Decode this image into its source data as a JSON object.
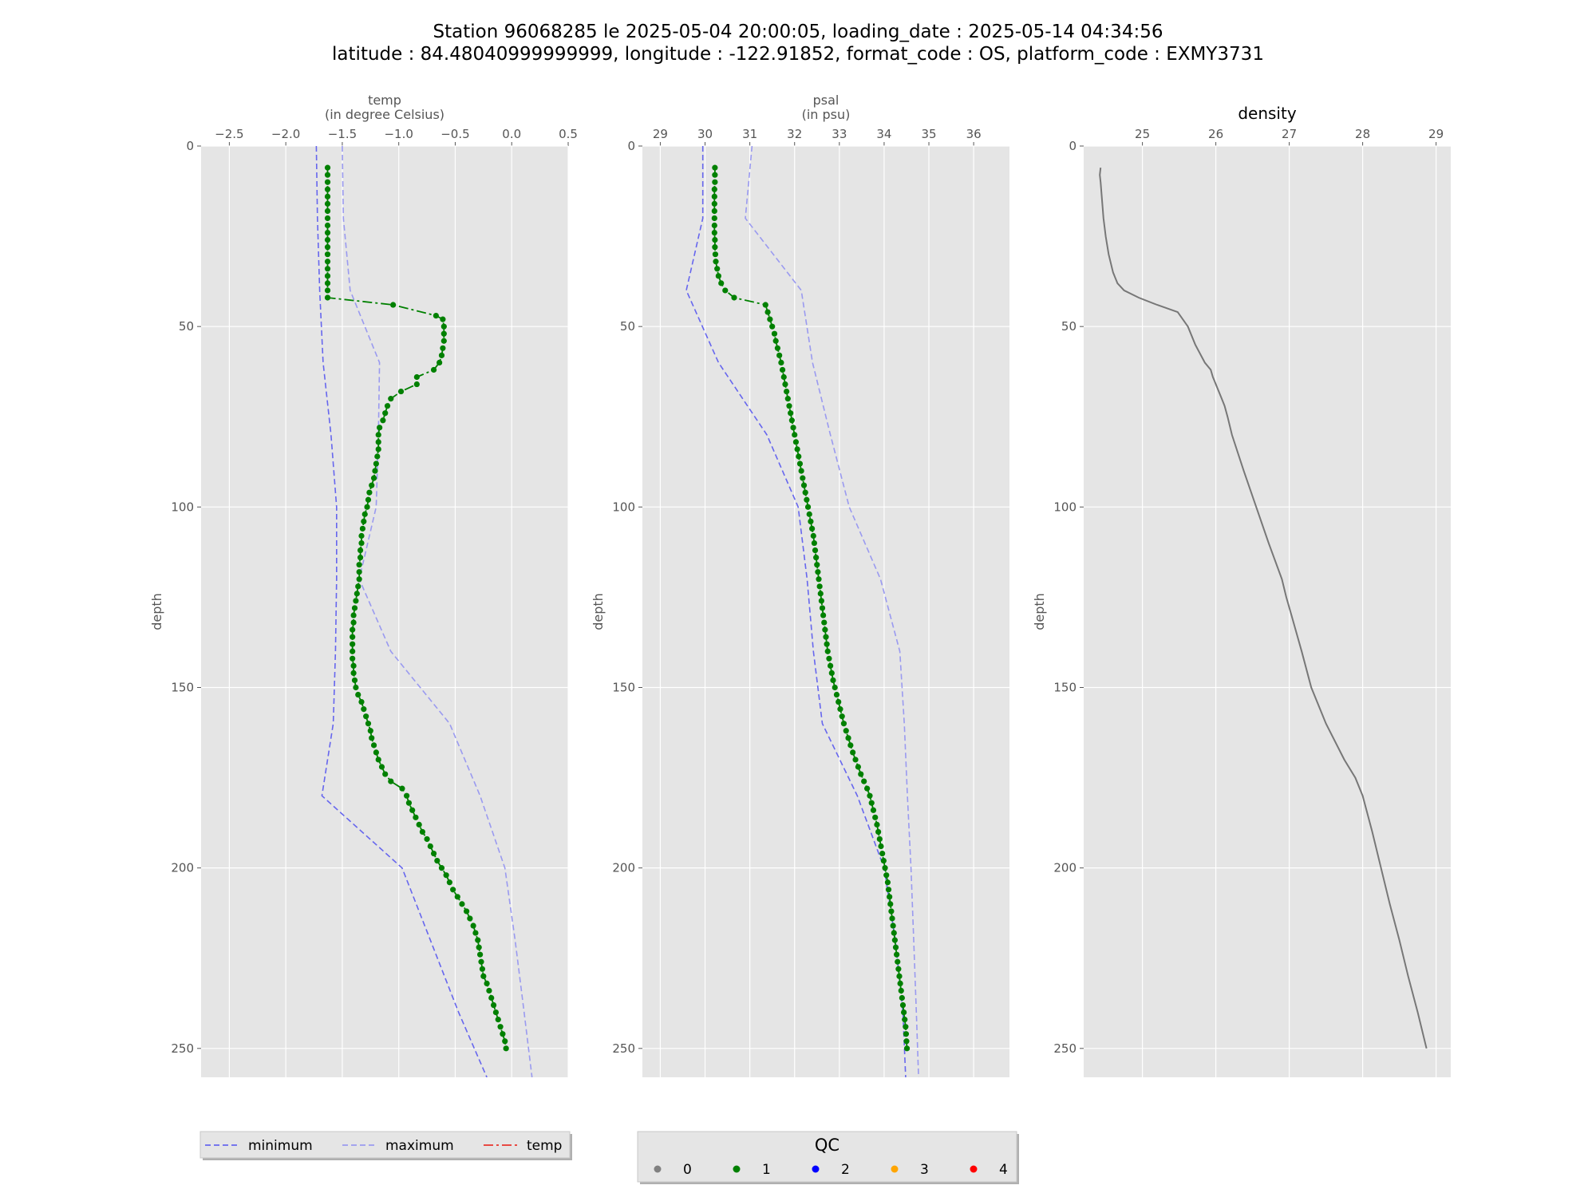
{
  "figure": {
    "title_line1": "Station 96068285 le 2025-05-04 20:00:05, loading_date : 2025-05-14 04:34:56",
    "title_line2": "latitude : 84.48040999999999, longitude : -122.91852, format_code : OS, platform_code : EXMY3731"
  },
  "colors": {
    "plot_bg": "#e5e5e5",
    "grid": "#ffffff",
    "min_line": "#6666ee",
    "max_line": "#9a9af0",
    "profile": "#008000",
    "density_line": "#777777",
    "legend_temp": "#e8352c",
    "qc0": "#808080",
    "qc1": "#008000",
    "qc2": "#0000ff",
    "qc3": "#ffa500",
    "qc4": "#ff0000"
  },
  "chart_data": [
    {
      "type": "line",
      "name": "temp",
      "xlabel_line1": "temp",
      "xlabel_line2": "(in degree Celsius)",
      "ylabel": "depth",
      "xlim": [
        -2.75,
        0.5
      ],
      "ylim": [
        258,
        0
      ],
      "xticks": [
        -2.5,
        -2.0,
        -1.5,
        -1.0,
        -0.5,
        0.0,
        0.5
      ],
      "xtick_labels": [
        "−2.5",
        "−2.0",
        "−1.5",
        "−1.0",
        "−0.5",
        "0.0",
        "0.5"
      ],
      "yticks": [
        0,
        50,
        100,
        150,
        200,
        250
      ],
      "ytick_labels": [
        "0",
        "50",
        "100",
        "150",
        "200",
        "250"
      ],
      "minimum": {
        "depth": [
          0,
          20,
          40,
          60,
          80,
          100,
          120,
          140,
          160,
          180,
          200,
          220,
          240,
          258
        ],
        "x": [
          -1.73,
          -1.72,
          -1.7,
          -1.67,
          -1.6,
          -1.55,
          -1.55,
          -1.56,
          -1.58,
          -1.68,
          -0.97,
          -0.72,
          -0.47,
          -0.22
        ]
      },
      "maximum": {
        "depth": [
          0,
          20,
          40,
          60,
          80,
          100,
          120,
          140,
          160,
          180,
          200,
          220,
          240,
          258
        ],
        "x": [
          -1.5,
          -1.49,
          -1.43,
          -1.17,
          -1.18,
          -1.2,
          -1.35,
          -1.07,
          -0.55,
          -0.28,
          -0.06,
          0.03,
          0.11,
          0.18
        ]
      },
      "profile": {
        "qc": 1,
        "depth": [
          6,
          8,
          10,
          12,
          14,
          16,
          18,
          20,
          22,
          24,
          26,
          28,
          30,
          32,
          34,
          36,
          38,
          40,
          42,
          44,
          47,
          48,
          50,
          52,
          54,
          56,
          58,
          60,
          62,
          64,
          66,
          68,
          70,
          72,
          74,
          76,
          78,
          80,
          82,
          84,
          86,
          88,
          90,
          92,
          94,
          96,
          98,
          100,
          102,
          104,
          106,
          108,
          110,
          112,
          114,
          116,
          118,
          120,
          122,
          124,
          126,
          128,
          130,
          132,
          134,
          136,
          138,
          140,
          142,
          144,
          146,
          148,
          150,
          152,
          154,
          156,
          158,
          160,
          162,
          164,
          166,
          168,
          170,
          172,
          174,
          176,
          178,
          180,
          182,
          184,
          186,
          188,
          190,
          192,
          194,
          196,
          198,
          200,
          202,
          204,
          206,
          208,
          210,
          212,
          214,
          216,
          218,
          220,
          222,
          224,
          226,
          228,
          230,
          232,
          234,
          236,
          238,
          240,
          242,
          244,
          246,
          248,
          250
        ],
        "x": [
          -1.63,
          -1.63,
          -1.63,
          -1.63,
          -1.63,
          -1.63,
          -1.63,
          -1.63,
          -1.63,
          -1.63,
          -1.63,
          -1.63,
          -1.63,
          -1.63,
          -1.63,
          -1.63,
          -1.63,
          -1.63,
          -1.63,
          -1.05,
          -0.67,
          -0.61,
          -0.6,
          -0.6,
          -0.6,
          -0.61,
          -0.62,
          -0.64,
          -0.69,
          -0.84,
          -0.84,
          -0.98,
          -1.07,
          -1.1,
          -1.12,
          -1.14,
          -1.17,
          -1.18,
          -1.18,
          -1.18,
          -1.19,
          -1.2,
          -1.21,
          -1.22,
          -1.24,
          -1.26,
          -1.27,
          -1.28,
          -1.3,
          -1.31,
          -1.32,
          -1.33,
          -1.33,
          -1.34,
          -1.34,
          -1.35,
          -1.35,
          -1.35,
          -1.36,
          -1.37,
          -1.38,
          -1.39,
          -1.4,
          -1.4,
          -1.41,
          -1.41,
          -1.41,
          -1.41,
          -1.41,
          -1.4,
          -1.4,
          -1.39,
          -1.38,
          -1.36,
          -1.33,
          -1.31,
          -1.29,
          -1.27,
          -1.25,
          -1.24,
          -1.22,
          -1.2,
          -1.18,
          -1.15,
          -1.12,
          -1.07,
          -0.97,
          -0.93,
          -0.91,
          -0.88,
          -0.85,
          -0.82,
          -0.79,
          -0.75,
          -0.72,
          -0.69,
          -0.66,
          -0.62,
          -0.58,
          -0.55,
          -0.52,
          -0.48,
          -0.44,
          -0.4,
          -0.37,
          -0.34,
          -0.32,
          -0.3,
          -0.29,
          -0.28,
          -0.27,
          -0.26,
          -0.25,
          -0.22,
          -0.2,
          -0.18,
          -0.16,
          -0.14,
          -0.12,
          -0.1,
          -0.08,
          -0.06,
          -0.05
        ]
      }
    },
    {
      "type": "line",
      "name": "psal",
      "xlabel_line1": "psal",
      "xlabel_line2": "(in psu)",
      "ylabel": "depth",
      "xlim": [
        28.6,
        36.8
      ],
      "ylim": [
        258,
        0
      ],
      "xticks": [
        29,
        30,
        31,
        32,
        33,
        34,
        35,
        36
      ],
      "xtick_labels": [
        "29",
        "30",
        "31",
        "32",
        "33",
        "34",
        "35",
        "36"
      ],
      "yticks": [
        0,
        50,
        100,
        150,
        200,
        250
      ],
      "ytick_labels": [
        "0",
        "50",
        "100",
        "150",
        "200",
        "250"
      ],
      "minimum": {
        "depth": [
          0,
          20,
          40,
          60,
          80,
          100,
          120,
          140,
          160,
          180,
          200,
          220,
          240,
          258
        ],
        "x": [
          29.95,
          29.95,
          29.58,
          30.3,
          31.38,
          32.08,
          32.28,
          32.42,
          32.62,
          33.4,
          34.0,
          34.25,
          34.42,
          34.48
        ]
      },
      "maximum": {
        "depth": [
          0,
          20,
          40,
          60,
          80,
          100,
          120,
          140,
          160,
          180,
          200,
          220,
          240,
          258
        ],
        "x": [
          31.05,
          30.9,
          32.15,
          32.4,
          32.8,
          33.22,
          33.92,
          34.35,
          34.45,
          34.52,
          34.6,
          34.66,
          34.72,
          34.77
        ]
      },
      "profile": {
        "qc": 1,
        "depth": [
          6,
          8,
          10,
          12,
          14,
          16,
          18,
          20,
          22,
          24,
          26,
          28,
          30,
          32,
          34,
          36,
          38,
          40,
          42,
          44,
          46,
          48,
          50,
          52,
          54,
          56,
          58,
          60,
          62,
          64,
          66,
          68,
          70,
          72,
          74,
          76,
          78,
          80,
          82,
          84,
          86,
          88,
          90,
          92,
          94,
          96,
          98,
          100,
          102,
          104,
          106,
          108,
          110,
          112,
          114,
          116,
          118,
          120,
          122,
          124,
          126,
          128,
          130,
          132,
          134,
          136,
          138,
          140,
          142,
          144,
          146,
          148,
          150,
          152,
          154,
          156,
          158,
          160,
          162,
          164,
          166,
          168,
          170,
          172,
          174,
          176,
          178,
          180,
          182,
          184,
          186,
          188,
          190,
          192,
          194,
          196,
          198,
          200,
          202,
          204,
          206,
          208,
          210,
          212,
          214,
          216,
          218,
          220,
          222,
          224,
          226,
          228,
          230,
          232,
          234,
          236,
          238,
          240,
          242,
          244,
          246,
          248,
          250
        ],
        "x": [
          30.22,
          30.22,
          30.22,
          30.21,
          30.21,
          30.21,
          30.21,
          30.21,
          30.21,
          30.21,
          30.22,
          30.22,
          30.23,
          30.24,
          30.27,
          30.3,
          30.36,
          30.45,
          30.65,
          31.35,
          31.4,
          31.45,
          31.5,
          31.55,
          31.58,
          31.62,
          31.66,
          31.7,
          31.73,
          31.76,
          31.79,
          31.82,
          31.85,
          31.88,
          31.91,
          31.94,
          31.97,
          32.0,
          32.03,
          32.06,
          32.09,
          32.12,
          32.15,
          32.18,
          32.21,
          32.24,
          32.27,
          32.3,
          32.33,
          32.36,
          32.39,
          32.42,
          32.44,
          32.46,
          32.48,
          32.5,
          32.52,
          32.54,
          32.56,
          32.58,
          32.6,
          32.62,
          32.64,
          32.66,
          32.68,
          32.7,
          32.72,
          32.74,
          32.77,
          32.8,
          32.83,
          32.86,
          32.9,
          32.94,
          32.98,
          33.02,
          33.06,
          33.1,
          33.15,
          33.2,
          33.25,
          33.3,
          33.36,
          33.42,
          33.48,
          33.55,
          33.62,
          33.68,
          33.72,
          33.76,
          33.8,
          33.84,
          33.87,
          33.9,
          33.93,
          33.96,
          33.99,
          34.02,
          34.05,
          34.08,
          34.1,
          34.12,
          34.14,
          34.16,
          34.18,
          34.2,
          34.22,
          34.24,
          34.26,
          34.28,
          34.3,
          34.32,
          34.34,
          34.36,
          34.38,
          34.4,
          34.42,
          34.44,
          34.46,
          34.48,
          34.49,
          34.5,
          34.51
        ]
      }
    },
    {
      "type": "line",
      "name": "density",
      "title": "density",
      "ylabel": "depth",
      "xlim": [
        24.2,
        29.2
      ],
      "ylim": [
        258,
        0
      ],
      "xticks": [
        25,
        26,
        27,
        28,
        29
      ],
      "xtick_labels": [
        "25",
        "26",
        "27",
        "28",
        "29"
      ],
      "yticks": [
        0,
        50,
        100,
        150,
        200,
        250
      ],
      "ytick_labels": [
        "0",
        "50",
        "100",
        "150",
        "200",
        "250"
      ],
      "line": {
        "depth": [
          6,
          8,
          10,
          15,
          20,
          25,
          30,
          35,
          38,
          40,
          42,
          44,
          46,
          50,
          55,
          60,
          62,
          64,
          66,
          70,
          72,
          75,
          80,
          85,
          90,
          100,
          110,
          120,
          125,
          130,
          140,
          150,
          160,
          170,
          175,
          180,
          190,
          200,
          210,
          220,
          230,
          240,
          250
        ],
        "x": [
          24.43,
          24.42,
          24.43,
          24.45,
          24.47,
          24.5,
          24.54,
          24.6,
          24.66,
          24.75,
          24.95,
          25.2,
          25.48,
          25.62,
          25.72,
          25.85,
          25.93,
          25.96,
          26.0,
          26.08,
          26.12,
          26.16,
          26.22,
          26.3,
          26.38,
          26.55,
          26.72,
          26.9,
          26.96,
          27.03,
          27.17,
          27.3,
          27.5,
          27.75,
          27.9,
          28.0,
          28.13,
          28.25,
          28.37,
          28.5,
          28.62,
          28.75,
          28.87
        ]
      }
    }
  ],
  "legend_lines": {
    "items": [
      {
        "label": "minimum",
        "style": "dashed",
        "color": "#6666ee"
      },
      {
        "label": "maximum",
        "style": "dashed",
        "color": "#9a9af0"
      },
      {
        "label": "temp",
        "style": "dashdot",
        "color": "#e8352c"
      }
    ]
  },
  "legend_qc": {
    "title": "QC",
    "items": [
      {
        "label": "0",
        "color": "#808080"
      },
      {
        "label": "1",
        "color": "#008000"
      },
      {
        "label": "2",
        "color": "#0000ff"
      },
      {
        "label": "3",
        "color": "#ffa500"
      },
      {
        "label": "4",
        "color": "#ff0000"
      }
    ]
  }
}
